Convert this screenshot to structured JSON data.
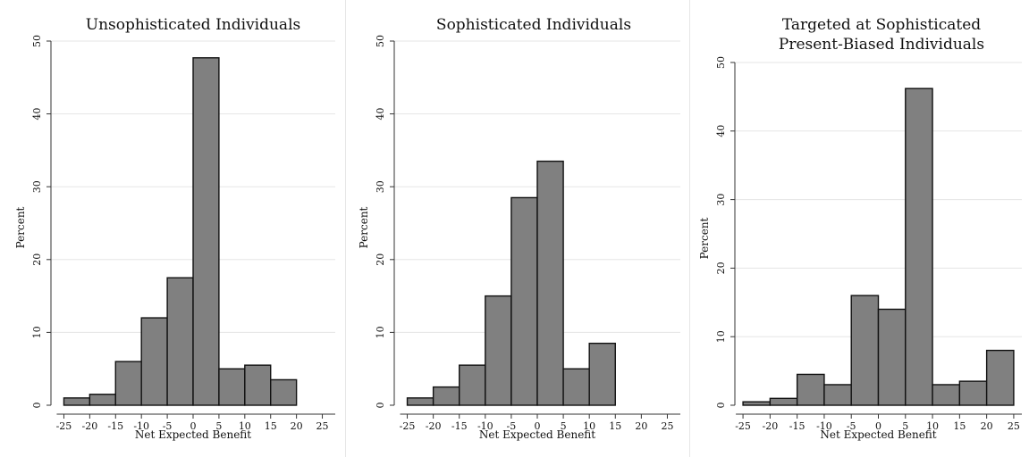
{
  "chart_data": [
    {
      "type": "bar",
      "title_lines": [
        "Unsophisticated Individuals"
      ],
      "xlabel": "Net Expected Benefit",
      "ylabel": "Percent",
      "xlim": [
        -27.5,
        27.5
      ],
      "ylim": [
        0,
        50
      ],
      "xticks": [
        -25,
        -20,
        -15,
        -10,
        -5,
        0,
        5,
        10,
        15,
        20,
        25
      ],
      "yticks": [
        0,
        10,
        20,
        30,
        40,
        50
      ],
      "grid": true,
      "bins": [
        {
          "x0": -25,
          "x1": -20,
          "value": 1
        },
        {
          "x0": -20,
          "x1": -15,
          "value": 1.5
        },
        {
          "x0": -15,
          "x1": -10,
          "value": 6
        },
        {
          "x0": -10,
          "x1": -5,
          "value": 12
        },
        {
          "x0": -5,
          "x1": 0,
          "value": 17.5
        },
        {
          "x0": 0,
          "x1": 5,
          "value": 47.7
        },
        {
          "x0": 5,
          "x1": 10,
          "value": 5
        },
        {
          "x0": 10,
          "x1": 15,
          "value": 5.5
        },
        {
          "x0": 15,
          "x1": 20,
          "value": 3.5
        }
      ]
    },
    {
      "type": "bar",
      "title_lines": [
        "Sophisticated Individuals"
      ],
      "xlabel": "Net Expected Benefit",
      "ylabel": "Percent",
      "xlim": [
        -27.5,
        27.5
      ],
      "ylim": [
        0,
        50
      ],
      "xticks": [
        -25,
        -20,
        -15,
        -10,
        -5,
        0,
        5,
        10,
        15,
        20,
        25
      ],
      "yticks": [
        0,
        10,
        20,
        30,
        40,
        50
      ],
      "grid": true,
      "bins": [
        {
          "x0": -25,
          "x1": -20,
          "value": 1
        },
        {
          "x0": -20,
          "x1": -15,
          "value": 2.5
        },
        {
          "x0": -15,
          "x1": -10,
          "value": 5.5
        },
        {
          "x0": -10,
          "x1": -5,
          "value": 15
        },
        {
          "x0": -5,
          "x1": 0,
          "value": 28.5
        },
        {
          "x0": 0,
          "x1": 5,
          "value": 33.5
        },
        {
          "x0": 5,
          "x1": 10,
          "value": 5
        },
        {
          "x0": 10,
          "x1": 15,
          "value": 8.5
        }
      ]
    },
    {
      "type": "bar",
      "title_lines": [
        "Targeted at Sophisticated",
        "Present-Biased Individuals"
      ],
      "xlabel": "Net Expected Benefit",
      "ylabel": "Percent",
      "xlim": [
        -26.5,
        26.5
      ],
      "ylim": [
        0,
        50
      ],
      "xticks": [
        -25,
        -20,
        -15,
        -10,
        -5,
        0,
        5,
        10,
        15,
        20,
        25
      ],
      "yticks": [
        0,
        10,
        20,
        30,
        40,
        50
      ],
      "grid": true,
      "bins": [
        {
          "x0": -25,
          "x1": -20,
          "value": 0.5
        },
        {
          "x0": -20,
          "x1": -15,
          "value": 1
        },
        {
          "x0": -15,
          "x1": -10,
          "value": 4.5
        },
        {
          "x0": -10,
          "x1": -5,
          "value": 3
        },
        {
          "x0": -5,
          "x1": 0,
          "value": 16
        },
        {
          "x0": 0,
          "x1": 5,
          "value": 14
        },
        {
          "x0": 5,
          "x1": 10,
          "value": 46.2
        },
        {
          "x0": 10,
          "x1": 15,
          "value": 3
        },
        {
          "x0": 15,
          "x1": 20,
          "value": 3.5
        },
        {
          "x0": 20,
          "x1": 25,
          "value": 8
        }
      ]
    }
  ]
}
